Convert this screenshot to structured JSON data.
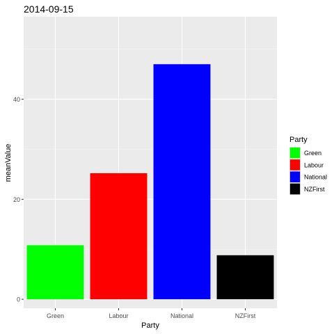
{
  "chart_data": {
    "type": "bar",
    "title": "2014-09-15",
    "xlabel": "Party",
    "ylabel": "meanValue",
    "categories": [
      "Green",
      "Labour",
      "National",
      "NZFirst"
    ],
    "values": [
      10.8,
      25.2,
      47.0,
      8.8
    ],
    "colors": [
      "#00ff00",
      "#ff0000",
      "#0000ff",
      "#000000"
    ],
    "ylim": [
      -1.8,
      56.5
    ],
    "yticks": [
      0,
      20,
      40
    ],
    "ytick_labels": [
      "0",
      "20",
      "40"
    ],
    "grid": true,
    "legend": {
      "title": "Party",
      "placement": "right",
      "entries": [
        "Green",
        "Labour",
        "National",
        "NZFirst"
      ]
    }
  }
}
